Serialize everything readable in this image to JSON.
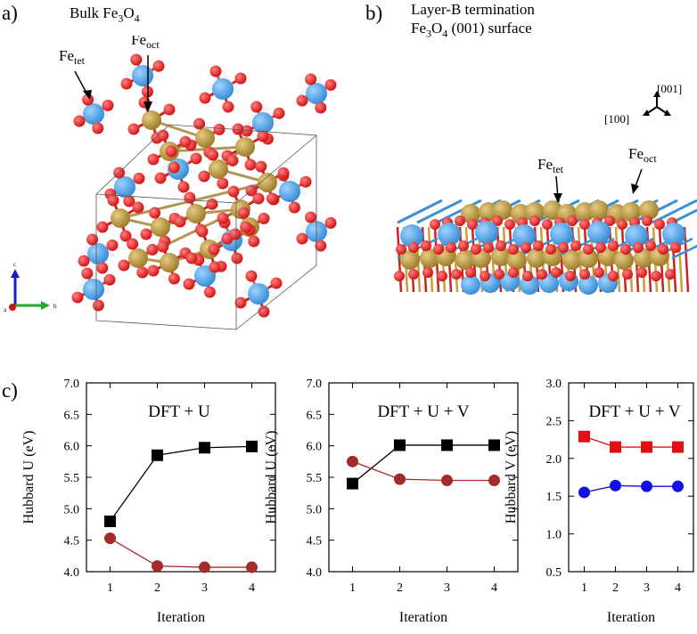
{
  "panels": {
    "a": {
      "label": "a)",
      "title_main": "Bulk Fe",
      "title_sub": "3",
      "title_tail": "O",
      "title_sub2": "4",
      "fe_tet": "Fe",
      "fe_tet_sub": "tet",
      "fe_oct": "Fe",
      "fe_oct_sub": "oct",
      "axes": {
        "c": "c",
        "b": "b",
        "a": "a"
      }
    },
    "b": {
      "label": "b)",
      "line1": "Layer-B termination",
      "line2_a": "Fe",
      "line2_sub1": "3",
      "line2_b": "O",
      "line2_sub2": "4",
      "line2_c": " (001) surface",
      "dir_001": "[001]",
      "dir_100": "[100]",
      "fe_tet": "Fe",
      "fe_tet_sub": "tet",
      "fe_oct": "Fe",
      "fe_oct_sub": "oct"
    },
    "c": {
      "label": "c)"
    }
  },
  "colors": {
    "fe_tet": "#3a8fd6",
    "fe_oct": "#a07e2a",
    "oxygen": "#d11616"
  },
  "chart_data": [
    {
      "type": "line",
      "title": "DFT + U",
      "xlabel": "Iteration",
      "ylabel": "Hubbard U (eV)",
      "x": [
        1,
        2,
        3,
        4
      ],
      "xticks": [
        "1",
        "2",
        "3",
        "4"
      ],
      "ylim": [
        4.0,
        7.0
      ],
      "yticks": [
        "4.0",
        "4.5",
        "5.0",
        "5.5",
        "6.0",
        "6.5",
        "7.0"
      ],
      "series": [
        {
          "values": [
            4.8,
            5.85,
            5.97,
            5.99
          ],
          "marker": "square",
          "color": "#000000"
        },
        {
          "values": [
            4.53,
            4.09,
            4.07,
            4.07
          ],
          "marker": "circle",
          "color": "#a52a2a"
        }
      ]
    },
    {
      "type": "line",
      "title": "DFT + U + V",
      "xlabel": "Iteration",
      "ylabel": "Hubbard U (eV)",
      "x": [
        1,
        2,
        3,
        4
      ],
      "xticks": [
        "1",
        "2",
        "3",
        "4"
      ],
      "ylim": [
        4.0,
        7.0
      ],
      "yticks": [
        "4.0",
        "4.5",
        "5.0",
        "5.5",
        "6.0",
        "6.5",
        "7.0"
      ],
      "series": [
        {
          "values": [
            5.4,
            6.01,
            6.01,
            6.01
          ],
          "marker": "square",
          "color": "#000000"
        },
        {
          "values": [
            5.75,
            5.47,
            5.45,
            5.45
          ],
          "marker": "circle",
          "color": "#a52a2a"
        }
      ]
    },
    {
      "type": "line",
      "title": "DFT + U + V",
      "xlabel": "Iteration",
      "ylabel": "Hubbard V (eV)",
      "x": [
        1,
        2,
        3,
        4
      ],
      "xticks": [
        "1",
        "2",
        "3",
        "4"
      ],
      "ylim": [
        0.5,
        3.0
      ],
      "yticks": [
        "0.5",
        "1.0",
        "1.5",
        "2.0",
        "2.5",
        "3.0"
      ],
      "series": [
        {
          "values": [
            2.29,
            2.15,
            2.15,
            2.15
          ],
          "marker": "square",
          "color": "#e01010"
        },
        {
          "values": [
            1.55,
            1.64,
            1.63,
            1.63
          ],
          "marker": "circle",
          "color": "#1010e0"
        }
      ]
    }
  ]
}
